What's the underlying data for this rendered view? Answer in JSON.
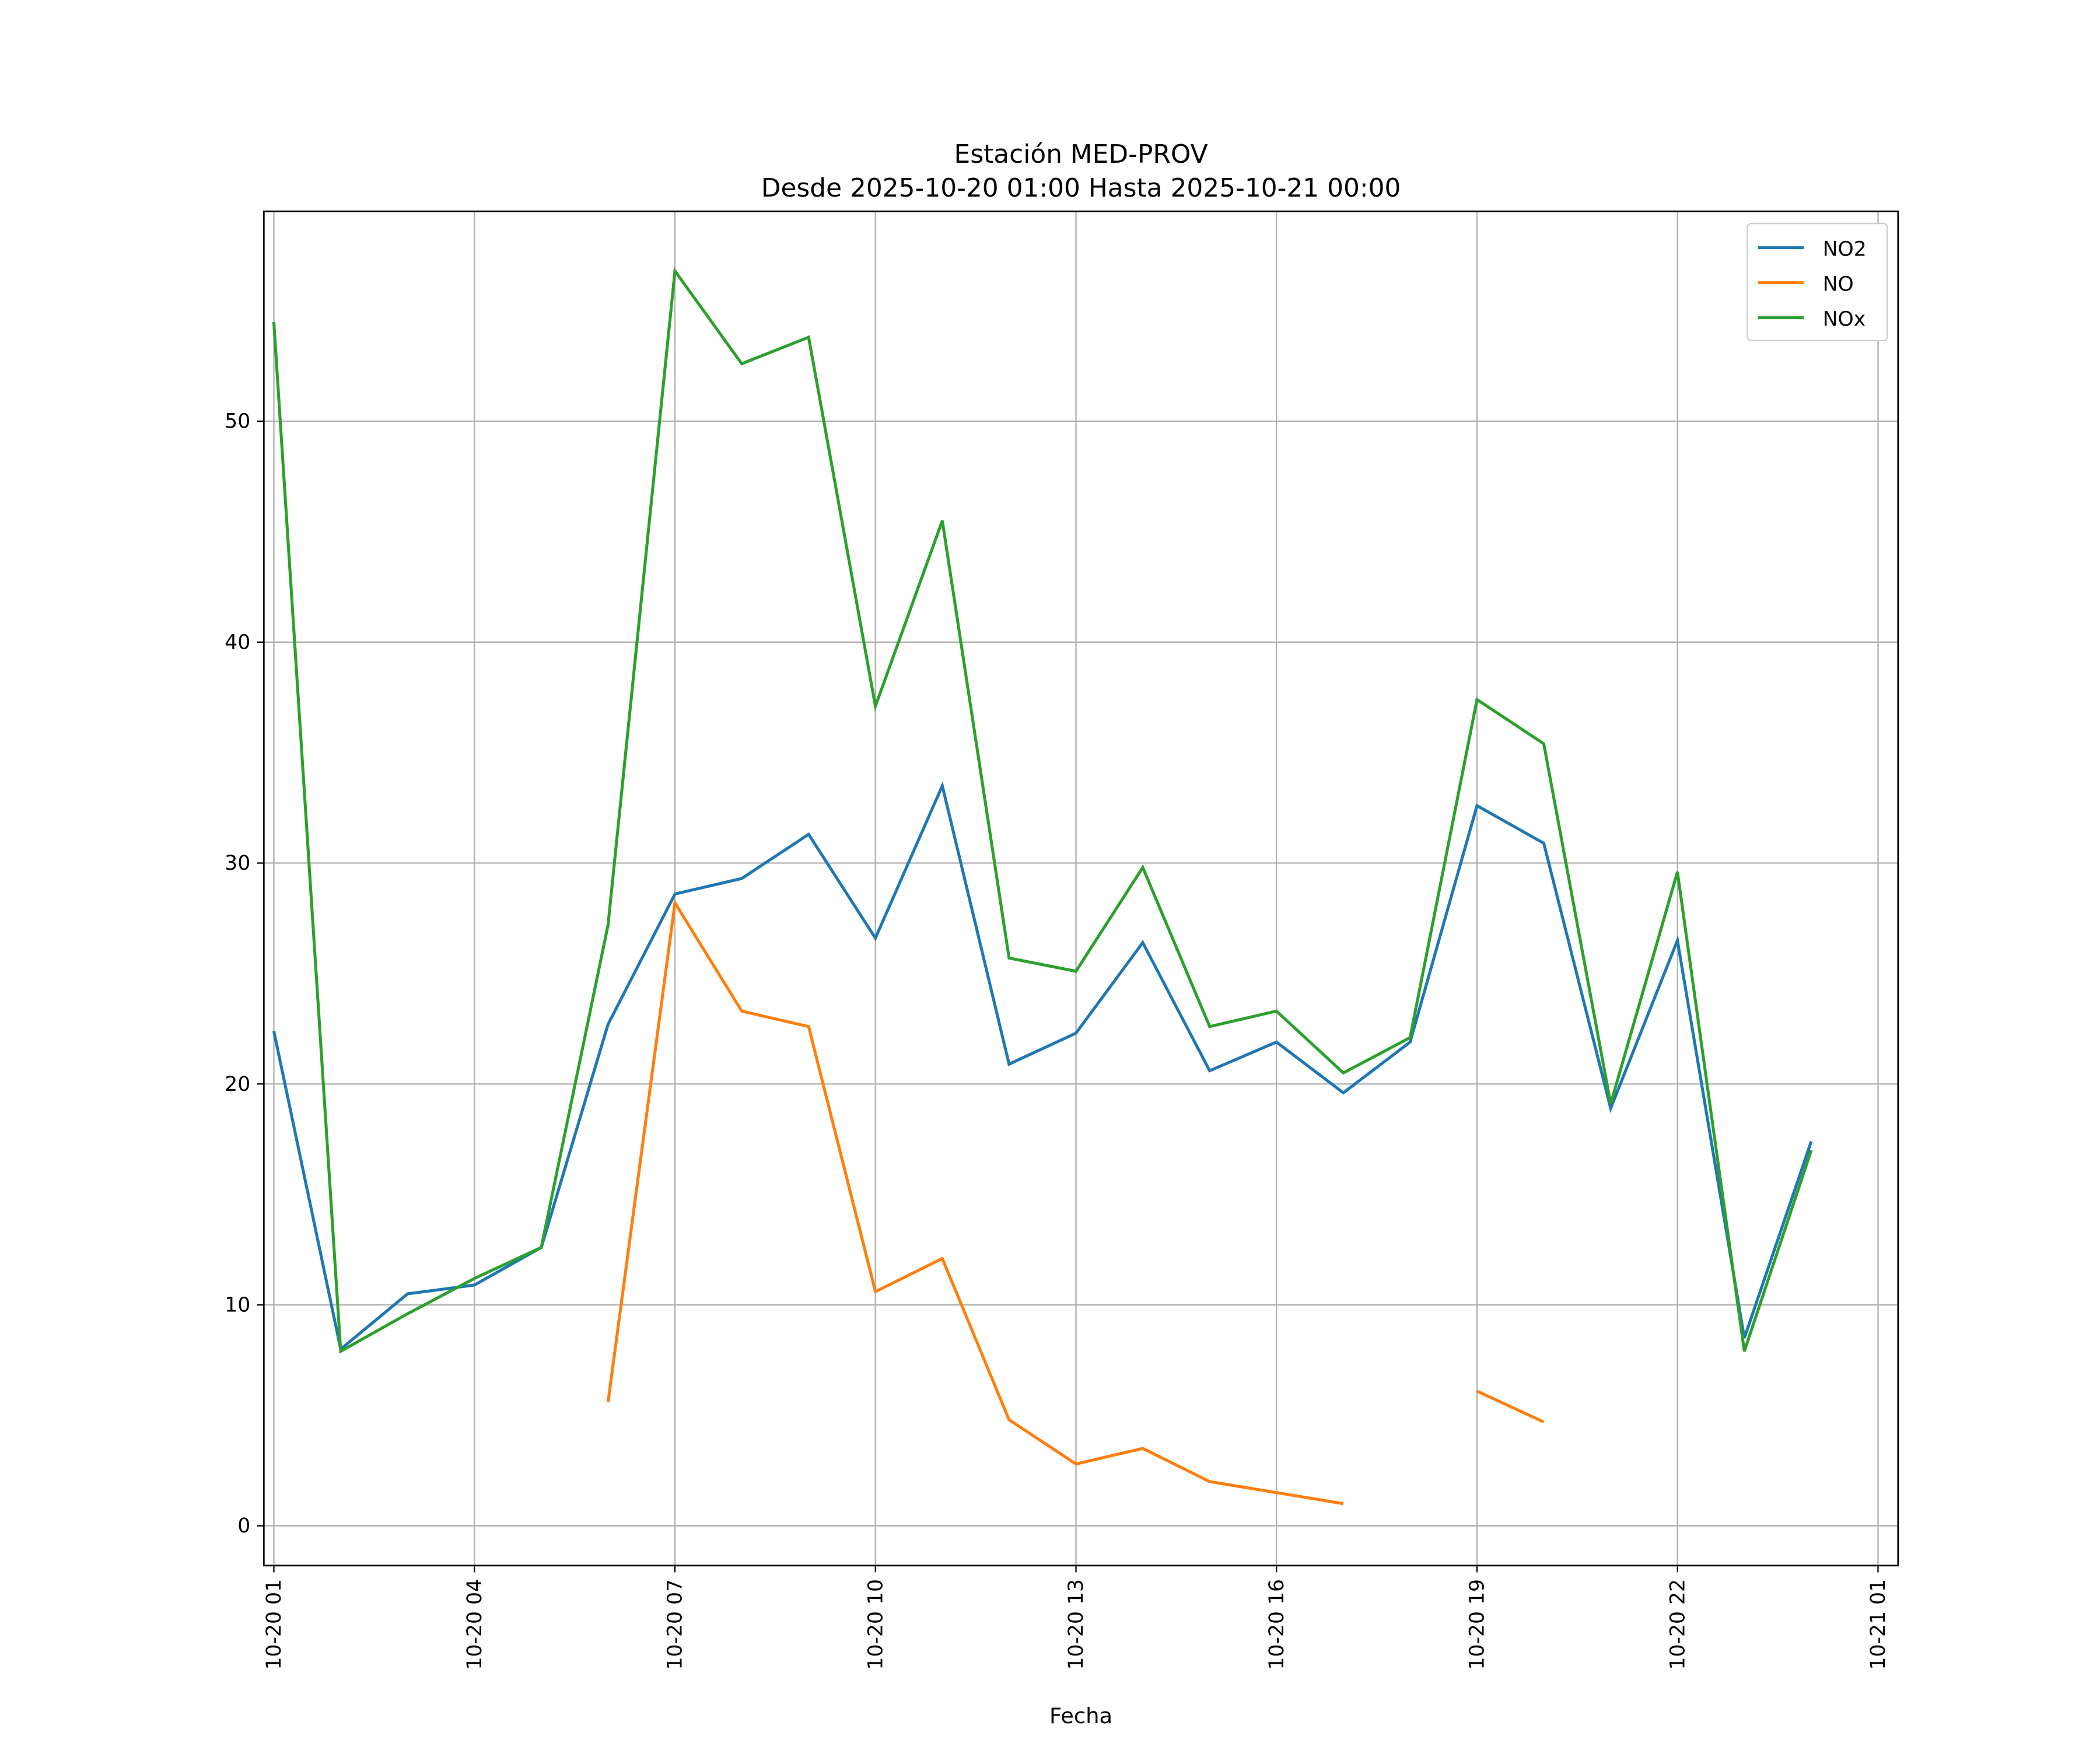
{
  "chart_data": {
    "type": "line",
    "title": "Estación MED-PROV",
    "subtitle": "Desde 2025-10-20 01:00 Hasta 2025-10-21 00:00",
    "xlabel": "Fecha",
    "ylabel": "",
    "x": [
      "2025-10-20 01:00",
      "2025-10-20 02:00",
      "2025-10-20 03:00",
      "2025-10-20 04:00",
      "2025-10-20 05:00",
      "2025-10-20 06:00",
      "2025-10-20 07:00",
      "2025-10-20 08:00",
      "2025-10-20 09:00",
      "2025-10-20 10:00",
      "2025-10-20 11:00",
      "2025-10-20 12:00",
      "2025-10-20 13:00",
      "2025-10-20 14:00",
      "2025-10-20 15:00",
      "2025-10-20 16:00",
      "2025-10-20 17:00",
      "2025-10-20 18:00",
      "2025-10-20 19:00",
      "2025-10-20 20:00",
      "2025-10-20 21:00",
      "2025-10-20 22:00",
      "2025-10-20 23:00",
      "2025-10-21 00:00"
    ],
    "xticks": [
      "10-20 01",
      "10-20 04",
      "10-20 07",
      "10-20 10",
      "10-20 13",
      "10-20 16",
      "10-20 19",
      "10-20 22",
      "10-21 01"
    ],
    "yticks": [
      0,
      10,
      20,
      30,
      40,
      50
    ],
    "ylim": [
      -1.8,
      59.5
    ],
    "xlim": [
      "2025-10-20 00:51",
      "2025-10-21 01:18"
    ],
    "grid": true,
    "legend": "top-right",
    "series": [
      {
        "name": "NO2",
        "color": "#1f77b4",
        "values": [
          22.4,
          8.0,
          10.5,
          10.9,
          12.6,
          22.7,
          28.6,
          29.3,
          31.3,
          26.6,
          33.5,
          20.9,
          22.3,
          26.4,
          20.6,
          21.9,
          19.6,
          21.9,
          32.6,
          30.9,
          18.9,
          26.5,
          8.5,
          17.4
        ]
      },
      {
        "name": "NO",
        "color": "#ff7f0e",
        "values": [
          null,
          null,
          null,
          null,
          null,
          5.6,
          28.2,
          23.3,
          22.6,
          10.6,
          12.1,
          4.8,
          2.8,
          3.5,
          2.0,
          1.5,
          1.0,
          null,
          6.1,
          4.7,
          null,
          null,
          null,
          null
        ]
      },
      {
        "name": "NOx",
        "color": "#2ca02c",
        "values": [
          54.5,
          7.9,
          9.6,
          11.2,
          12.6,
          27.2,
          56.8,
          52.6,
          53.8,
          37.1,
          45.5,
          25.7,
          25.1,
          29.8,
          22.6,
          23.3,
          20.5,
          22.1,
          37.4,
          35.4,
          19.1,
          29.6,
          7.9,
          17.0
        ]
      }
    ]
  }
}
